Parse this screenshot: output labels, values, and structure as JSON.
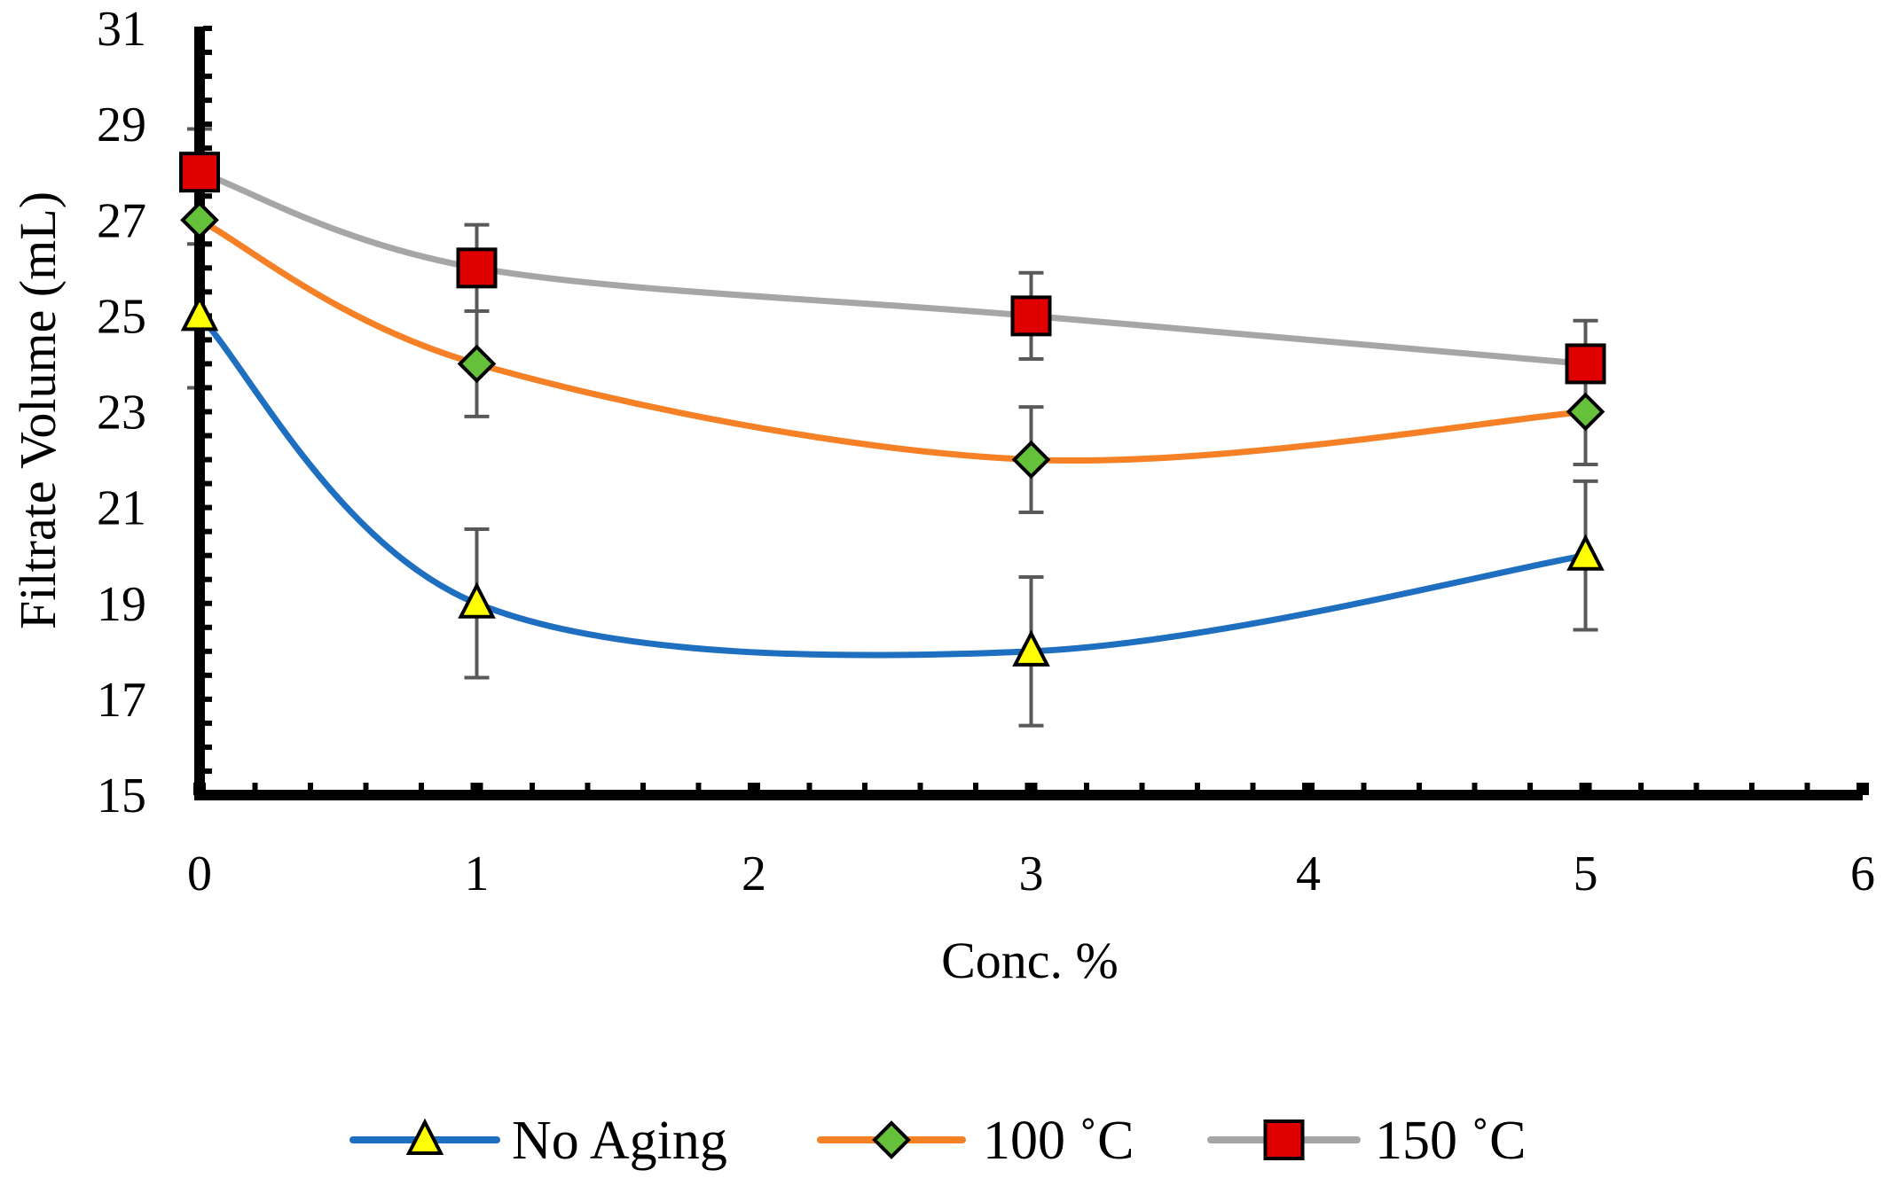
{
  "chart_data": {
    "type": "line",
    "title": "",
    "xlabel": "Conc. %",
    "ylabel": "Filtrate Volume (mL)",
    "xlim": [
      0,
      6
    ],
    "ylim": [
      15,
      31
    ],
    "x_ticks": [
      0,
      1,
      2,
      3,
      4,
      5,
      6
    ],
    "y_ticks": [
      15,
      17,
      19,
      21,
      23,
      25,
      27,
      29,
      31
    ],
    "x_tick_labels": [
      "0",
      "1",
      "2",
      "3",
      "4",
      "5",
      "6"
    ],
    "y_tick_labels": [
      "15",
      "17",
      "19",
      "21",
      "23",
      "25",
      "27",
      "29",
      "31"
    ],
    "grid": false,
    "smooth": true,
    "legend_position": "bottom",
    "series": [
      {
        "name": "No Aging",
        "color": "#1F6FC0",
        "marker": "triangle",
        "marker_fill": "#FFFF00",
        "x": [
          0,
          1,
          3,
          5
        ],
        "y": [
          25,
          19,
          18,
          20
        ],
        "error": [
          1.5,
          1.55,
          1.55,
          1.55
        ]
      },
      {
        "name": "100 ˚C",
        "color": "#F58025",
        "marker": "diamond",
        "marker_fill": "#66C13A",
        "x": [
          0,
          1,
          3,
          5
        ],
        "y": [
          27,
          24,
          22,
          23
        ],
        "error": [
          0,
          1.1,
          1.1,
          1.1
        ]
      },
      {
        "name": "150 ˚C",
        "color": "#A6A6A6",
        "marker": "square",
        "marker_fill": "#E00000",
        "x": [
          0,
          1,
          3,
          5
        ],
        "y": [
          28,
          26,
          25,
          24
        ],
        "error": [
          0.9,
          0.9,
          0.9,
          0.9
        ]
      }
    ],
    "errorbar_color": "#595959"
  }
}
